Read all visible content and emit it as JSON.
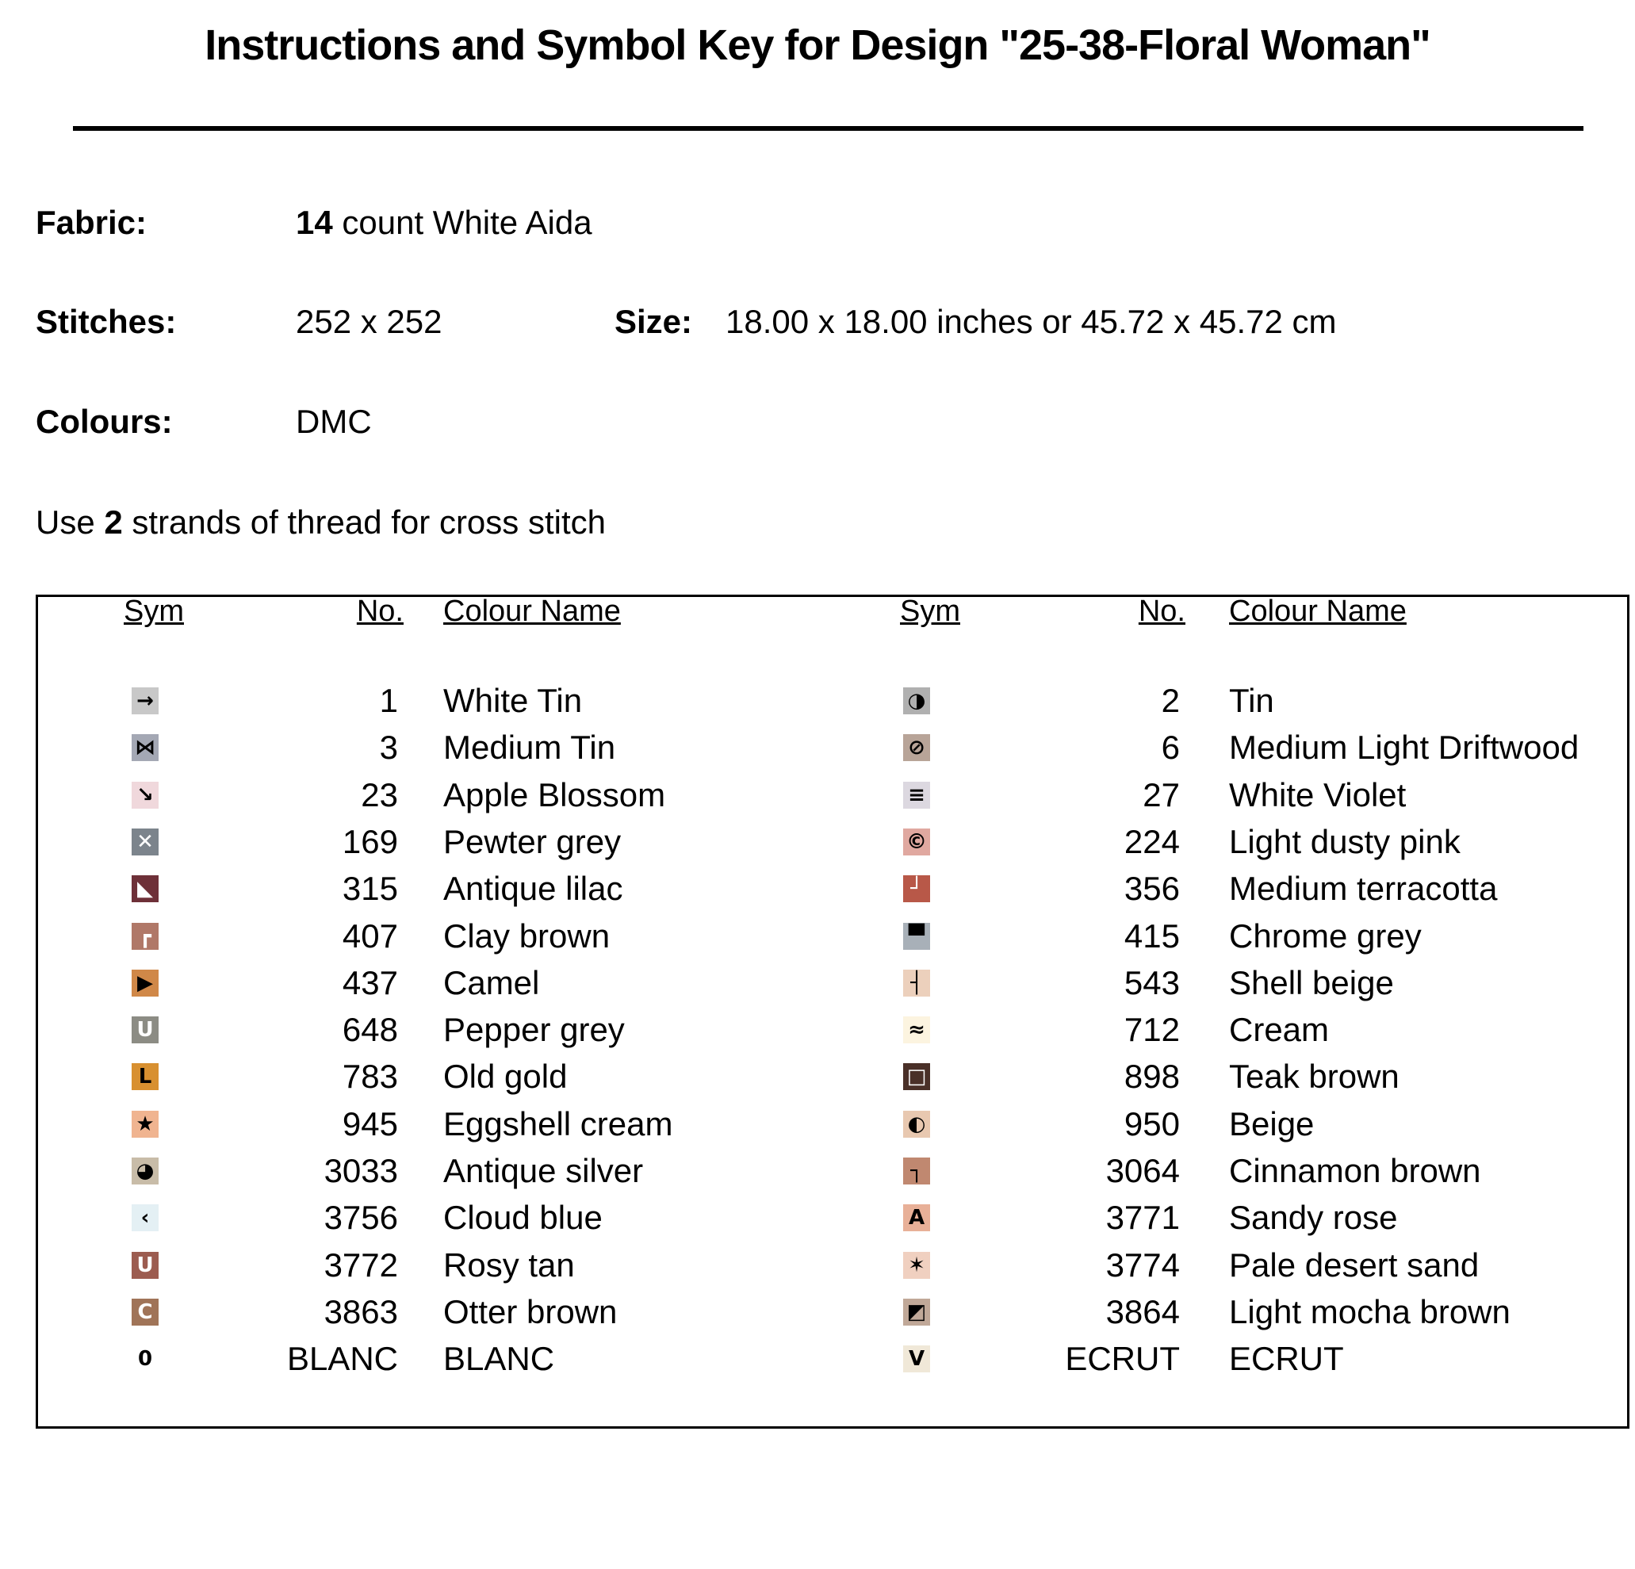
{
  "title": "Instructions and Symbol Key for Design \"25-38-Floral Woman\"",
  "fabric": {
    "label": "Fabric:",
    "count": 14,
    "text": "count White Aida"
  },
  "stitches": {
    "label": "Stitches:",
    "value": "252 x 252"
  },
  "size": {
    "label": "Size:",
    "value": "18.00 x 18.00 inches or 45.72 x 45.72 cm"
  },
  "colours": {
    "label": "Colours:",
    "value": "DMC"
  },
  "strands": {
    "before": "Use",
    "count": 2,
    "after": "strands of thread for cross stitch"
  },
  "table": {
    "headers": [
      "Sym",
      "No.",
      "Colour Name"
    ],
    "columns": [
      [
        {
          "sym": "→",
          "no": 1,
          "name": "White Tin",
          "color": "#c8c8c8"
        },
        {
          "sym": "⋈",
          "no": 3,
          "name": "Medium Tin",
          "color": "#a4a8b4"
        },
        {
          "sym": "↘",
          "no": 23,
          "name": "Apple Blossom",
          "color": "#f0d8dc"
        },
        {
          "sym": "✕",
          "no": 169,
          "name": "Pewter grey",
          "color": "#7c848c"
        },
        {
          "sym": "◣",
          "no": 315,
          "name": "Antique lilac",
          "color": "#6e3038"
        },
        {
          "sym": "┏",
          "no": 407,
          "name": "Clay brown",
          "color": "#b07868"
        },
        {
          "sym": "▶",
          "no": 437,
          "name": "Camel",
          "color": "#d08848"
        },
        {
          "sym": "U",
          "no": 648,
          "name": "Pepper grey",
          "color": "#8c8c84"
        },
        {
          "sym": "L",
          "no": 783,
          "name": "Old gold",
          "color": "#d89030"
        },
        {
          "sym": "★",
          "no": 945,
          "name": "Eggshell cream",
          "color": "#f0b490"
        },
        {
          "sym": "◕",
          "no": 3033,
          "name": "Antique silver",
          "color": "#c8bca8"
        },
        {
          "sym": "‹",
          "no": 3756,
          "name": "Cloud blue",
          "color": "#e4f0f4"
        },
        {
          "sym": "U",
          "no": 3772,
          "name": "Rosy tan",
          "color": "#9c5c50"
        },
        {
          "sym": "C",
          "no": 3863,
          "name": "Otter brown",
          "color": "#a07458"
        },
        {
          "sym": "0",
          "no": "BLANC",
          "name": "BLANC",
          "color": "#ffffff"
        }
      ],
      [
        {
          "sym": "◑",
          "no": 2,
          "name": "Tin",
          "color": "#b0b0b0"
        },
        {
          "sym": "⊘",
          "no": 6,
          "name": "Medium Light Driftwood",
          "color": "#b8a498"
        },
        {
          "sym": "≡",
          "no": 27,
          "name": "White Violet",
          "color": "#dcd8e0"
        },
        {
          "sym": "©",
          "no": 224,
          "name": "Light dusty pink",
          "color": "#e0a8a0"
        },
        {
          "sym": "┘",
          "no": 356,
          "name": "Medium terracotta",
          "color": "#b85848"
        },
        {
          "sym": "▀",
          "no": 415,
          "name": "Chrome grey",
          "color": "#a8b0b8"
        },
        {
          "sym": "┤",
          "no": 543,
          "name": "Shell beige",
          "color": "#ecd0bc"
        },
        {
          "sym": "≈",
          "no": 712,
          "name": "Cream",
          "color": "#fcf4e0"
        },
        {
          "sym": "□",
          "no": 898,
          "name": "Teak brown",
          "color": "#4a3028"
        },
        {
          "sym": "◐",
          "no": 950,
          "name": "Beige",
          "color": "#e8c8b0"
        },
        {
          "sym": "┐",
          "no": 3064,
          "name": "Cinnamon brown",
          "color": "#c08870"
        },
        {
          "sym": "A",
          "no": 3771,
          "name": "Sandy rose",
          "color": "#e8b098"
        },
        {
          "sym": "✶",
          "no": 3774,
          "name": "Pale desert sand",
          "color": "#f0d0c0"
        },
        {
          "sym": "◩",
          "no": 3864,
          "name": "Light mocha brown",
          "color": "#c0a898"
        },
        {
          "sym": "V",
          "no": "ECRUT",
          "name": "ECRUT",
          "color": "#f0e8d8"
        }
      ]
    ]
  }
}
